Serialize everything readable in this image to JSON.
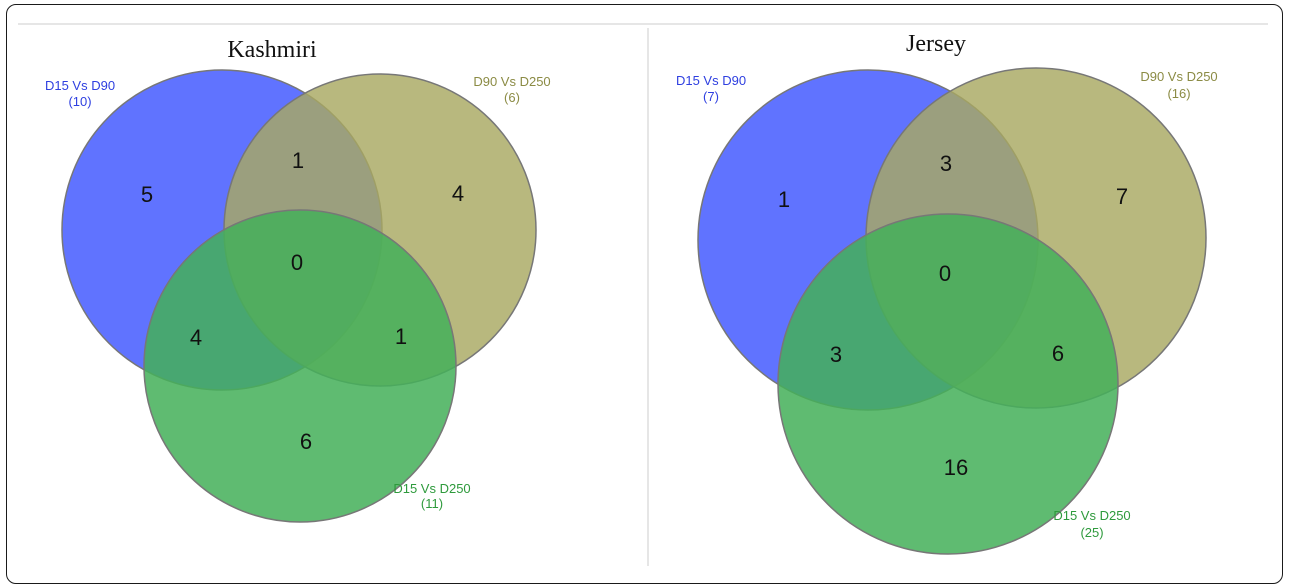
{
  "colors": {
    "set_a": "#4a60ff",
    "set_b": "#a8a862",
    "set_c": "#45b05a",
    "label_a": "#2e3fe0",
    "label_b": "#8b8b44",
    "label_c": "#2e9a3c",
    "outline": "#777777",
    "divider": "#e6e6e6"
  },
  "diagrams": [
    {
      "title": "Kashmiri",
      "sets": [
        {
          "name": "D15 Vs D90",
          "count": "(10)"
        },
        {
          "name": "D90 Vs D250",
          "count": "(6)"
        },
        {
          "name": "D15 Vs D250",
          "count": "(11)"
        }
      ],
      "regions": {
        "a_only": "5",
        "b_only": "4",
        "c_only": "6",
        "ab": "1",
        "ac": "4",
        "bc": "1",
        "abc": "0"
      }
    },
    {
      "title": "Jersey",
      "sets": [
        {
          "name": "D15 Vs D90",
          "count": "(7)"
        },
        {
          "name": "D90 Vs D250",
          "count": "(16)"
        },
        {
          "name": "D15 Vs D250",
          "count": "(25)"
        }
      ],
      "regions": {
        "a_only": "1",
        "b_only": "7",
        "c_only": "16",
        "ab": "3",
        "ac": "3",
        "bc": "6",
        "abc": "0"
      }
    }
  ]
}
